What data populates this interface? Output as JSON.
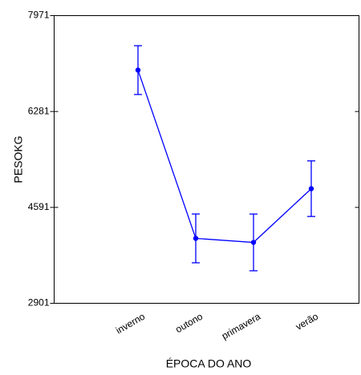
{
  "chart_data": {
    "type": "line",
    "ylabel": "PESOKG",
    "xlabel": "ÉPOCA DO ANO",
    "categories": [
      "inverno",
      "outono",
      "primavera",
      "verão"
    ],
    "series": [
      {
        "color": "#0000ff",
        "values": [
          7011,
          4045,
          3974,
          4921
        ],
        "errors": [
          430,
          430,
          500,
          490
        ]
      }
    ],
    "ylim": [
      2901,
      7971
    ],
    "yticks": [
      2901,
      4591,
      6281,
      7971
    ]
  }
}
